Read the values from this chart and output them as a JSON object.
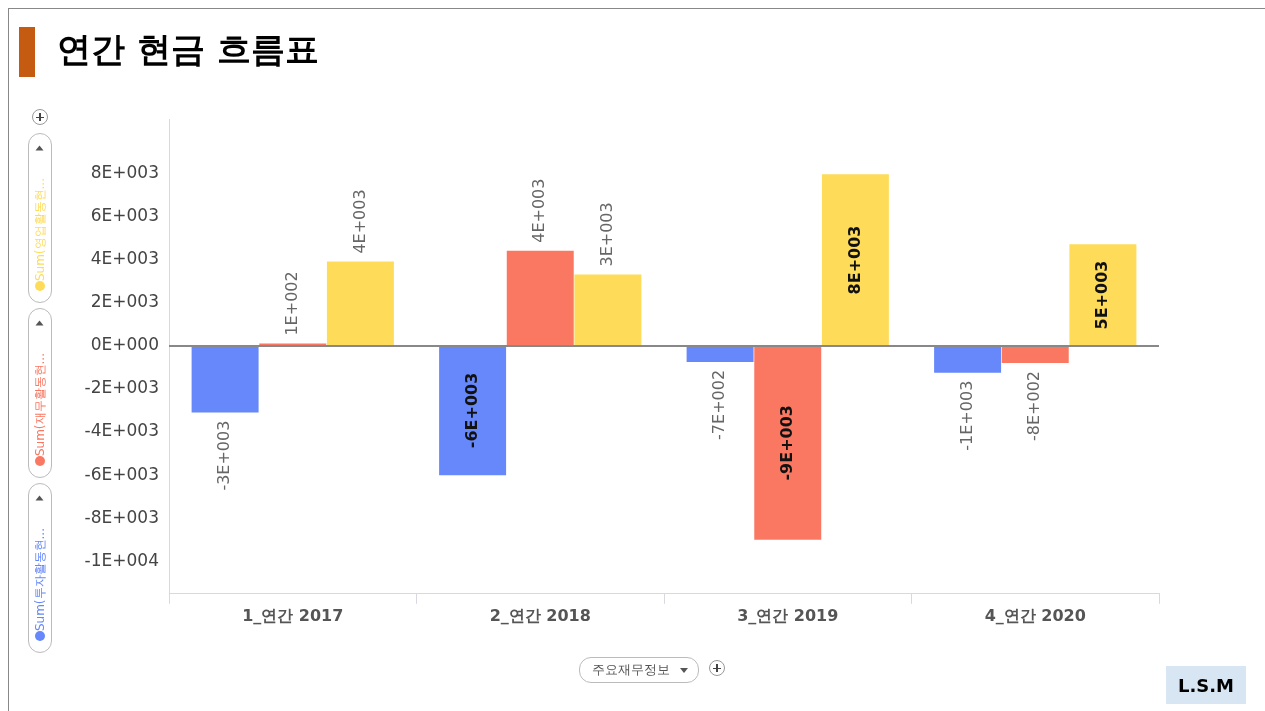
{
  "chart_data": {
    "type": "bar",
    "title": "연간 현금 흐름표",
    "xlabel": "주요재무정보",
    "categories": [
      "1_연간 2017",
      "2_연간 2018",
      "3_연간 2019",
      "4_연간 2020"
    ],
    "series": [
      {
        "name": "Sum(투자활동현...",
        "color": "#6688fa",
        "values": [
          -3100,
          -6000,
          -750,
          -1250
        ],
        "value_labels": [
          "-3E+003",
          "-6E+003",
          "-7E+002",
          "-1E+003"
        ]
      },
      {
        "name": "Sum(재무활동현...",
        "color": "#fa7862",
        "values": [
          100,
          4400,
          -9000,
          -800
        ],
        "value_labels": [
          "1E+002",
          "4E+003",
          "-9E+003",
          "-8E+002"
        ]
      },
      {
        "name": "Sum(영업활동현...",
        "color": "#fedc5a",
        "values": [
          3900,
          3300,
          7950,
          4700
        ],
        "value_labels": [
          "4E+003",
          "3E+003",
          "8E+003",
          "5E+003"
        ]
      }
    ],
    "ylim": [
      -11500,
      10500
    ],
    "yticks": [
      {
        "value": 8000,
        "label": "8E+003"
      },
      {
        "value": 6000,
        "label": "6E+003"
      },
      {
        "value": 4000,
        "label": "4E+003"
      },
      {
        "value": 2000,
        "label": "2E+003"
      },
      {
        "value": 0,
        "label": "0E+000"
      },
      {
        "value": -2000,
        "label": "-2E+003"
      },
      {
        "value": -4000,
        "label": "-4E+003"
      },
      {
        "value": -6000,
        "label": "-6E+003"
      },
      {
        "value": -8000,
        "label": "-8E+003"
      },
      {
        "value": -10000,
        "label": "-1E+004"
      }
    ],
    "ref_lines": [
      {
        "axis": "y",
        "value": 0,
        "color": "#888888"
      }
    ],
    "legend": "left",
    "annotations": [
      "L.S.M"
    ]
  }
}
